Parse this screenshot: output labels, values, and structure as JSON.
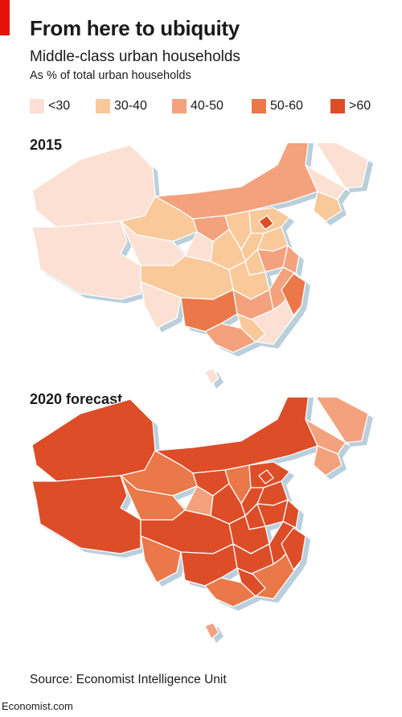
{
  "header": {
    "title": "From here to ubiquity",
    "subtitle": "Middle-class urban households",
    "unit_note": "As % of total urban households"
  },
  "legend": [
    {
      "label": "<30",
      "color": "#fbe0d3"
    },
    {
      "label": "30-40",
      "color": "#f9c99a"
    },
    {
      "label": "40-50",
      "color": "#f3a27d"
    },
    {
      "label": "50-60",
      "color": "#ea7848"
    },
    {
      "label": ">60",
      "color": "#dc4d28"
    }
  ],
  "maps": [
    {
      "title": "2015",
      "region_classes": [
        "<30",
        "<30",
        "40-50",
        "<30",
        "<30",
        "30-40",
        "30-40",
        "<30",
        "40-50",
        "<30",
        "30-40",
        "30-40",
        "30-40",
        "30-40",
        "30-40",
        "40-50",
        "30-40",
        "40-50",
        "30-40",
        "30-40",
        "<30",
        "50-60",
        "40-50",
        "40-50",
        "<30",
        ">60",
        "50-60",
        "30-40",
        "40-50",
        "<30"
      ]
    },
    {
      "title": "2020 forecast",
      "region_classes": [
        ">60",
        ">60",
        ">60",
        "40-50",
        "40-50",
        "40-50",
        "50-60",
        "50-60",
        ">60",
        "40-50",
        "50-60",
        ">60",
        ">60",
        ">60",
        ">60",
        ">60",
        ">60",
        ">60",
        ">60",
        ">60",
        "50-60",
        ">60",
        ">60",
        ">60",
        "50-60",
        ">60",
        ">60",
        ">60",
        "50-60",
        "40-50"
      ]
    }
  ],
  "footer": {
    "source": "Source: Economist Intelligence Unit",
    "site": "Economist.com"
  }
}
